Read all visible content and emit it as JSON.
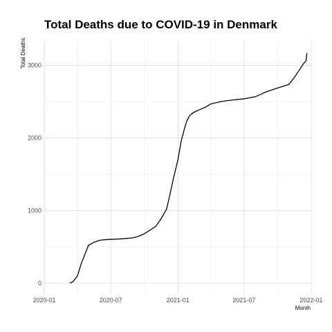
{
  "chart_data": {
    "type": "line",
    "title": "Total Deaths due to COVID-19 in Denmark",
    "xlabel": "Month",
    "ylabel": "Total Deaths",
    "x_ticks": [
      "2020-01",
      "2020-07",
      "2021-01",
      "2021-07",
      "2022-01"
    ],
    "y_ticks": [
      0,
      1000,
      2000,
      3000
    ],
    "xlim": [
      "2020-01-01",
      "2022-01-01"
    ],
    "ylim": [
      -150,
      3350
    ],
    "grid": true,
    "line_color": "#000000",
    "series": [
      {
        "x": [
          "2020-03-11",
          "2020-03-20",
          "2020-04-01",
          "2020-04-10",
          "2020-04-20",
          "2020-05-01",
          "2020-05-15",
          "2020-06-01",
          "2020-06-15",
          "2020-07-01",
          "2020-08-01",
          "2020-09-01",
          "2020-09-15",
          "2020-10-01",
          "2020-10-15",
          "2020-11-01",
          "2020-11-15",
          "2020-12-01",
          "2020-12-10",
          "2020-12-20",
          "2021-01-01",
          "2021-01-10",
          "2021-01-20",
          "2021-01-25",
          "2021-02-01",
          "2021-02-10",
          "2021-02-20",
          "2021-03-01",
          "2021-03-15",
          "2021-04-01",
          "2021-05-01",
          "2021-06-01",
          "2021-07-01",
          "2021-08-01",
          "2021-09-01",
          "2021-10-01",
          "2021-11-01",
          "2021-11-15",
          "2021-12-01",
          "2021-12-10",
          "2021-12-18",
          "2021-12-20"
        ],
        "y": [
          0,
          20,
          100,
          250,
          380,
          520,
          560,
          590,
          598,
          603,
          610,
          625,
          645,
          680,
          725,
          780,
          880,
          1020,
          1220,
          1450,
          1700,
          1960,
          2150,
          2230,
          2300,
          2345,
          2370,
          2390,
          2420,
          2470,
          2505,
          2525,
          2540,
          2570,
          2640,
          2690,
          2740,
          2830,
          2950,
          3020,
          3070,
          3170
        ]
      }
    ]
  }
}
